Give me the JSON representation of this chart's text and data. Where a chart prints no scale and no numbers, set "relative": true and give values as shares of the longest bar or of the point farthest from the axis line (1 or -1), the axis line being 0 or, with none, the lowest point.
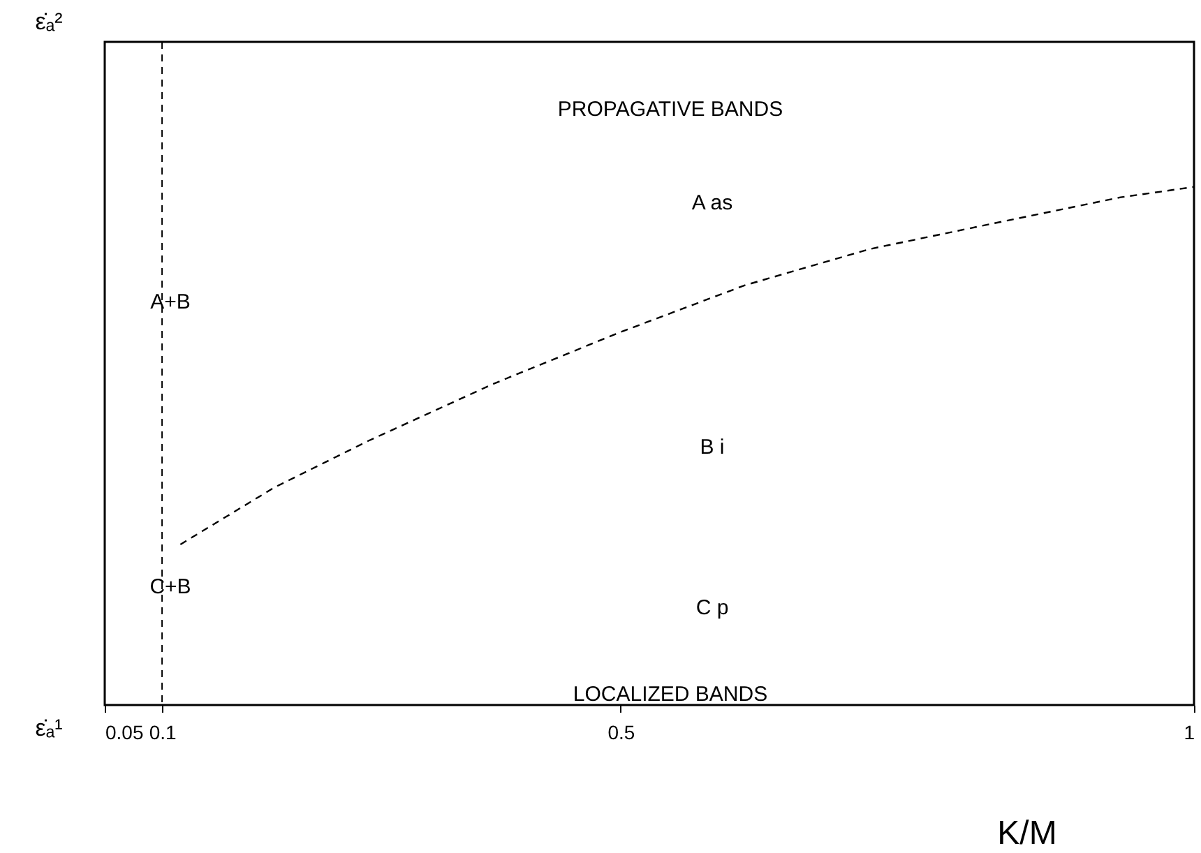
{
  "chart_data": {
    "type": "line",
    "relative": true,
    "xlabel": "K/M",
    "x": [
      0.116,
      0.198,
      0.28,
      0.389,
      0.5,
      0.608,
      0.717,
      0.826,
      0.936,
      1.0
    ],
    "series": [
      {
        "color": "#000000",
        "values": [
          0.31,
          0.42,
          0.51,
          0.62,
          0.72,
          0.81,
          0.88,
          0.93,
          0.98,
          1.0
        ]
      }
    ],
    "xlim": [
      0.05,
      1
    ],
    "xticks": [
      0.05,
      0.1,
      0.5,
      1
    ],
    "line_style": "dashed",
    "ref_lines": [
      {
        "axis": "x",
        "value": 0.1,
        "line_style": "dashed",
        "color": "#000000"
      }
    ],
    "annotations": [
      "ε̇ₐ²",
      "ε̇ₐ¹",
      "PROPAGATIVE BANDS",
      "A  as",
      "A+B",
      "B  i",
      "C+B",
      "C  p",
      "LOCALIZED BANDS"
    ]
  }
}
